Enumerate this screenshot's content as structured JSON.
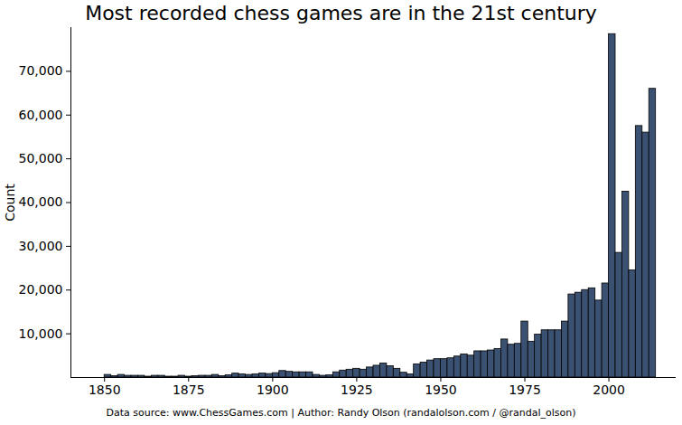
{
  "chart_data": {
    "type": "histogram",
    "title": "Most recorded chess games are in the 21st century",
    "y_label": "Count",
    "caption": "Data source: www.ChessGames.com | Author: Randy Olson (randalolson.com / @randal_olson)",
    "bins": [
      1850,
      1852,
      1854,
      1856,
      1858,
      1860,
      1862,
      1864,
      1866,
      1868,
      1870,
      1872,
      1874,
      1876,
      1878,
      1880,
      1882,
      1884,
      1886,
      1888,
      1890,
      1892,
      1894,
      1896,
      1898,
      1900,
      1902,
      1904,
      1906,
      1908,
      1910,
      1912,
      1914,
      1916,
      1918,
      1920,
      1922,
      1924,
      1926,
      1928,
      1930,
      1932,
      1934,
      1936,
      1938,
      1940,
      1942,
      1944,
      1946,
      1948,
      1950,
      1952,
      1954,
      1956,
      1958,
      1960,
      1962,
      1964,
      1966,
      1968,
      1970,
      1972,
      1974,
      1976,
      1978,
      1980,
      1982,
      1984,
      1986,
      1988,
      1990,
      1992,
      1994,
      1996,
      1998,
      2000,
      2002,
      2004,
      2006,
      2008,
      2010,
      2012,
      2014
    ],
    "values": [
      600,
      300,
      600,
      400,
      400,
      400,
      200,
      400,
      400,
      200,
      200,
      400,
      200,
      300,
      400,
      400,
      600,
      300,
      500,
      900,
      700,
      600,
      700,
      900,
      800,
      1000,
      1500,
      1300,
      1200,
      1200,
      1200,
      600,
      400,
      500,
      1200,
      1600,
      1800,
      2000,
      1800,
      2300,
      2700,
      3200,
      2600,
      2000,
      1100,
      700,
      3000,
      3400,
      3900,
      4200,
      4200,
      4400,
      4800,
      5300,
      5000,
      6000,
      6000,
      6200,
      6500,
      8700,
      7500,
      7700,
      12800,
      8200,
      9800,
      10800,
      10800,
      10800,
      12800,
      19000,
      19400,
      20000,
      20400,
      17600,
      21500,
      78500,
      28500,
      42500,
      24500,
      57500,
      56000,
      66000
    ],
    "color": "#3b5172",
    "xlim": [
      1840,
      2020
    ],
    "xticks": [
      1850,
      1875,
      1900,
      1925,
      1950,
      1975,
      2000
    ],
    "ylim": [
      0,
      80000
    ],
    "yticks": [
      {
        "value": 10000,
        "label": "10,000"
      },
      {
        "value": 20000,
        "label": "20,000"
      },
      {
        "value": 30000,
        "label": "30,000"
      },
      {
        "value": 40000,
        "label": "40,000"
      },
      {
        "value": 50000,
        "label": "50,000"
      },
      {
        "value": 60000,
        "label": "60,000"
      },
      {
        "value": 70000,
        "label": "70,000"
      }
    ],
    "grid": false
  }
}
